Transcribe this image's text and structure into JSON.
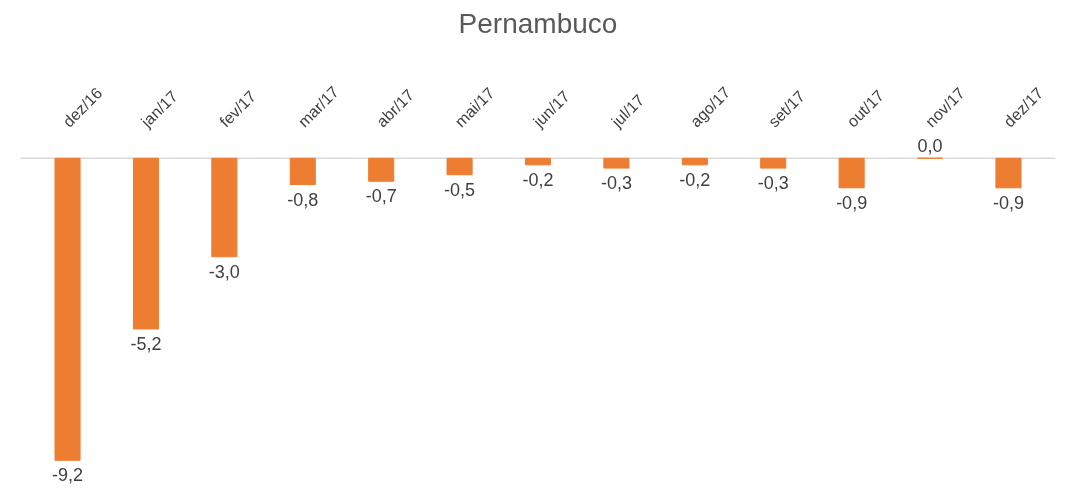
{
  "chart_data": {
    "type": "bar",
    "title": "Pernambuco",
    "categories": [
      "dez/16",
      "jan/17",
      "fev/17",
      "mar/17",
      "abr/17",
      "mai/17",
      "jun/17",
      "jul/17",
      "ago/17",
      "set/17",
      "out/17",
      "nov/17",
      "dez/17"
    ],
    "values": [
      -9.2,
      -5.2,
      -3.0,
      -0.8,
      -0.7,
      -0.5,
      -0.2,
      -0.3,
      -0.2,
      -0.3,
      -0.9,
      0.0,
      -0.9
    ],
    "value_labels": [
      "-9,2",
      "-5,2",
      "-3,0",
      "-0,8",
      "-0,7",
      "-0,5",
      "-0,2",
      "-0,3",
      "-0,2",
      "-0,3",
      "-0,9",
      "0,0",
      "-0,9"
    ],
    "color": "#ed7d31",
    "grid": false
  }
}
